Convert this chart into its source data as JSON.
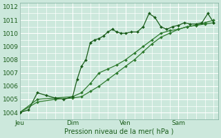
{
  "bg_color": "#cce8dc",
  "grid_color_major": "#ffffff",
  "grid_color_minor": "#dff0e8",
  "line_color_dark": "#1a5c1a",
  "line_color_mid": "#2d7a2d",
  "ylabel": "Pression niveau de la mer( hPa )",
  "ylim": [
    1003.5,
    1012.3
  ],
  "yticks": [
    1004,
    1005,
    1006,
    1007,
    1008,
    1009,
    1010,
    1011,
    1012
  ],
  "xtick_labels": [
    "Jeu",
    "Dim",
    "Ven",
    "Sam"
  ],
  "xtick_positions": [
    0,
    36,
    72,
    108
  ],
  "xlim": [
    0,
    135
  ],
  "series1_x": [
    0,
    6,
    12,
    18,
    24,
    30,
    36,
    39,
    42,
    45,
    48,
    51,
    54,
    57,
    60,
    63,
    66,
    69,
    72,
    76,
    80,
    84,
    88,
    92,
    96,
    100,
    104,
    108,
    112,
    116,
    120,
    124,
    128,
    132
  ],
  "series1_y": [
    1004.0,
    1004.2,
    1005.5,
    1005.3,
    1005.1,
    1005.0,
    1005.2,
    1006.5,
    1007.5,
    1008.0,
    1009.3,
    1009.5,
    1009.6,
    1009.8,
    1010.1,
    1010.3,
    1010.1,
    1010.0,
    1010.0,
    1010.1,
    1010.1,
    1010.5,
    1011.5,
    1011.2,
    1010.5,
    1010.3,
    1010.5,
    1010.6,
    1010.8,
    1010.7,
    1010.7,
    1010.8,
    1011.5,
    1010.8
  ],
  "series2_x": [
    0,
    12,
    24,
    36,
    42,
    48,
    54,
    60,
    66,
    72,
    78,
    84,
    90,
    96,
    102,
    108,
    114,
    120,
    126,
    132
  ],
  "series2_y": [
    1004.0,
    1005.0,
    1005.1,
    1005.2,
    1005.5,
    1006.2,
    1007.0,
    1007.3,
    1007.6,
    1008.0,
    1008.5,
    1009.0,
    1009.5,
    1010.0,
    1010.2,
    1010.3,
    1010.5,
    1010.6,
    1010.7,
    1010.8
  ],
  "series3_x": [
    0,
    12,
    24,
    36,
    42,
    48,
    54,
    60,
    66,
    72,
    78,
    84,
    90,
    96,
    102,
    108,
    114,
    120,
    126,
    132
  ],
  "series3_y": [
    1004.0,
    1004.8,
    1005.0,
    1005.1,
    1005.2,
    1005.6,
    1006.0,
    1006.5,
    1007.0,
    1007.5,
    1008.0,
    1008.6,
    1009.2,
    1009.7,
    1010.0,
    1010.3,
    1010.5,
    1010.6,
    1010.8,
    1011.0
  ]
}
